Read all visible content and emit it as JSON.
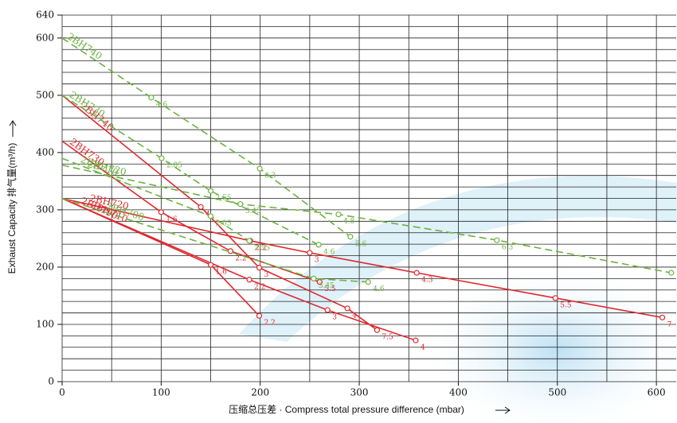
{
  "chart_data": {
    "type": "line",
    "x_label": "压缩总压差 · Compress total pressure difference (mbar)",
    "y_label": "Exhaust Capacity 排气量(m³/h)",
    "xlim": [
      0,
      620
    ],
    "ylim": [
      0,
      640
    ],
    "xticks": [
      0,
      100,
      200,
      300,
      400,
      500,
      600
    ],
    "yticks": [
      0,
      100,
      200,
      300,
      400,
      500,
      600,
      640
    ],
    "xgrid": [
      0,
      50,
      100,
      150,
      200,
      250,
      300,
      350,
      400,
      450,
      500,
      550,
      600
    ],
    "ygrid": [
      0,
      20,
      40,
      60,
      80,
      100,
      120,
      140,
      160,
      180,
      200,
      220,
      240,
      260,
      280,
      300,
      320,
      340,
      360,
      380,
      400,
      420,
      440,
      460,
      480,
      500,
      520,
      540,
      560,
      580,
      600,
      620,
      640
    ],
    "series": [
      {
        "name": "2BH740",
        "color": "#e0282e",
        "style": "solid",
        "x": [
          0,
          140,
          199,
          288,
          318
        ],
        "y": [
          500,
          305,
          199,
          128,
          90
        ],
        "point_labels": [
          null,
          "4",
          "3",
          "4",
          "7.5"
        ]
      },
      {
        "name": "2BH730",
        "color": "#e0282e",
        "style": "solid",
        "x": [
          0,
          100,
          170,
          260
        ],
        "y": [
          420,
          296,
          228,
          174
        ],
        "point_labels": [
          null,
          "1.6",
          "2.2",
          "5.5"
        ]
      },
      {
        "name": "2BH720",
        "color": "#e0282e",
        "style": "solid",
        "x": [
          0,
          190,
          250,
          358,
          498,
          606
        ],
        "y": [
          320,
          246,
          225,
          190,
          146,
          112
        ],
        "point_labels": [
          null,
          "2.2",
          "3",
          "4.3",
          "5.5",
          "7"
        ]
      },
      {
        "name": "2BH710",
        "color": "#e0282e",
        "style": "solid",
        "x": [
          0,
          189,
          268,
          357
        ],
        "y": [
          320,
          178,
          125,
          72
        ],
        "point_labels": [
          null,
          "2.2",
          "3",
          "4"
        ]
      },
      {
        "name": "2BH790",
        "color": "#e0282e",
        "style": "solid",
        "x": [
          0,
          150,
          199
        ],
        "y": [
          320,
          204,
          115
        ],
        "point_labels": [
          null,
          "1.6",
          "2.2"
        ]
      },
      {
        "name": "2BH740",
        "color": "#6cb33f",
        "style": "dashed",
        "x": [
          0,
          90,
          199.5,
          291
        ],
        "y": [
          600,
          496,
          372,
          253
        ],
        "point_labels": [
          null,
          "4.6",
          "6.3",
          "5.6"
        ]
      },
      {
        "name": "2BH730",
        "color": "#6cb33f",
        "style": "dashed",
        "x": [
          0,
          100.5,
          150,
          259
        ],
        "y": [
          500,
          390,
          333,
          239
        ],
        "point_labels": [
          null,
          "2.05",
          "2.55",
          "4.6"
        ]
      },
      {
        "name": "2BH720",
        "color": "#6cb33f",
        "style": "dashed",
        "x": [
          0,
          180,
          279,
          439,
          615
        ],
        "y": [
          378,
          310,
          292,
          247,
          190
        ],
        "point_labels": [
          null,
          "3.45",
          "4.8",
          "6.3",
          null
        ]
      },
      {
        "name": "2BH710",
        "color": "#6cb33f",
        "style": "dashed",
        "x": [
          0,
          150,
          189
        ],
        "y": [
          390,
          289,
          246
        ],
        "point_labels": [
          null,
          "2.05",
          "2.55"
        ]
      },
      {
        "name": "2BH700",
        "color": "#6cb33f",
        "style": "dashed",
        "x": [
          0,
          254,
          309
        ],
        "y": [
          320,
          180,
          174
        ],
        "point_labels": [
          null,
          "3.45",
          "4.6"
        ]
      }
    ]
  }
}
